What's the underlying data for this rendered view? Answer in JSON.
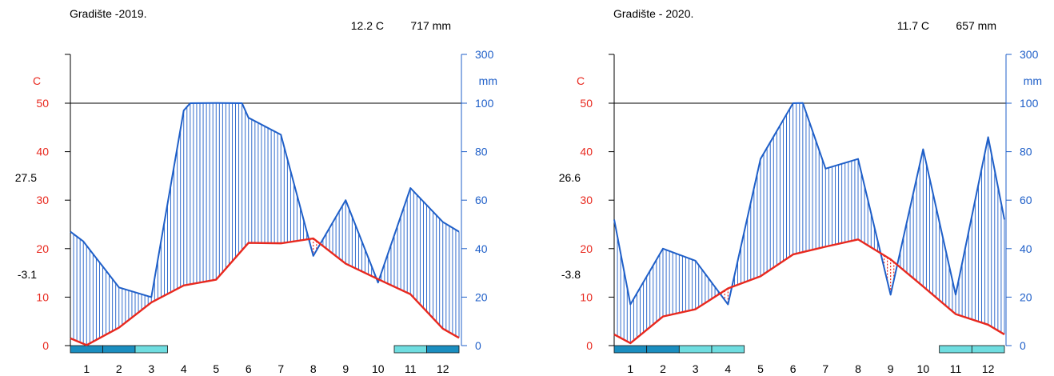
{
  "colors": {
    "temp": "#e8281e",
    "precip": "#1f5fc8",
    "axis": "#000000",
    "frost_sure": "#1a8ec0",
    "frost_probable": "#6fdde0"
  },
  "chart_data": [
    {
      "type": "line",
      "chart_kind": "walter-lieth climate diagram",
      "title": "Gradište -2019.",
      "mean_temp_label": "12.2 C",
      "annual_precip_label": "717 mm",
      "temp_unit": "C",
      "precip_unit": "mm",
      "max_label": "27.5",
      "min_label": "-3.1",
      "x": [
        1,
        2,
        3,
        4,
        5,
        6,
        7,
        8,
        9,
        10,
        11,
        12
      ],
      "xlim": [
        0.5,
        12.5
      ],
      "ylim_temp": [
        0,
        60
      ],
      "ylim_precip": [
        0,
        300
      ],
      "temp_ticks": [
        "0",
        "10",
        "20",
        "30",
        "40",
        "50"
      ],
      "precip_ticks": [
        "0",
        "20",
        "40",
        "60",
        "80",
        "100",
        "300"
      ],
      "month_labels": [
        "1",
        "2",
        "3",
        "4",
        "5",
        "6",
        "7",
        "8",
        "9",
        "10",
        "11",
        "12"
      ],
      "series": [
        {
          "key": "temperature",
          "x": [
            0.5,
            1.0,
            2.0,
            3.0,
            4.0,
            5.0,
            6.0,
            7.0,
            8.0,
            9.0,
            10.0,
            11.0,
            12.0,
            12.5
          ],
          "values": [
            1.5,
            0.1,
            3.7,
            8.9,
            12.4,
            13.6,
            21.2,
            21.1,
            22.1,
            16.9,
            13.7,
            10.6,
            3.5,
            1.6
          ]
        },
        {
          "key": "precipitation",
          "x": [
            0.5,
            0.9,
            2.0,
            3.0,
            4.0,
            4.2,
            5.0,
            5.8,
            6.0,
            7.0,
            8.0,
            9.0,
            10.0,
            11.0,
            12.0,
            12.5
          ],
          "values": [
            47,
            43,
            24,
            20,
            97,
            100,
            101,
            100,
            94,
            87,
            37,
            60,
            26,
            65,
            51,
            47
          ]
        }
      ],
      "frost_months": [
        {
          "month": 1,
          "type": "sure"
        },
        {
          "month": 2,
          "type": "sure"
        },
        {
          "month": 3,
          "type": "probable"
        },
        {
          "month": 11,
          "type": "probable"
        },
        {
          "month": 12,
          "type": "sure"
        }
      ]
    },
    {
      "type": "line",
      "chart_kind": "walter-lieth climate diagram",
      "title": "Gradište - 2020.",
      "mean_temp_label": "11.7 C",
      "annual_precip_label": "657 mm",
      "temp_unit": "C",
      "precip_unit": "mm",
      "max_label": "26.6",
      "min_label": "-3.8",
      "x": [
        1,
        2,
        3,
        4,
        5,
        6,
        7,
        8,
        9,
        10,
        11,
        12
      ],
      "xlim": [
        0.5,
        12.5
      ],
      "ylim_temp": [
        0,
        60
      ],
      "ylim_precip": [
        0,
        300
      ],
      "temp_ticks": [
        "0",
        "10",
        "20",
        "30",
        "40",
        "50"
      ],
      "precip_ticks": [
        "0",
        "20",
        "40",
        "60",
        "80",
        "100",
        "300"
      ],
      "month_labels": [
        "1",
        "2",
        "3",
        "4",
        "5",
        "6",
        "7",
        "8",
        "9",
        "10",
        "11",
        "12"
      ],
      "series": [
        {
          "key": "temperature",
          "x": [
            0.5,
            1.0,
            2.0,
            3.0,
            4.0,
            5.0,
            6.0,
            7.0,
            8.0,
            9.0,
            10.0,
            11.0,
            12.0,
            12.5
          ],
          "values": [
            2.3,
            0.5,
            6.0,
            7.5,
            11.8,
            14.3,
            18.8,
            20.4,
            21.9,
            17.8,
            12.2,
            6.5,
            4.3,
            2.3
          ]
        },
        {
          "key": "precipitation",
          "x": [
            0.5,
            1.0,
            2.0,
            3.0,
            4.0,
            5.0,
            6.0,
            6.3,
            7.0,
            8.0,
            9.0,
            10.0,
            11.0,
            12.0,
            12.5
          ],
          "values": [
            52,
            17,
            40,
            35,
            17,
            77,
            100,
            101,
            73,
            77,
            21,
            81,
            21,
            86,
            52
          ]
        }
      ],
      "frost_months": [
        {
          "month": 1,
          "type": "sure"
        },
        {
          "month": 2,
          "type": "sure"
        },
        {
          "month": 3,
          "type": "probable"
        },
        {
          "month": 4,
          "type": "probable"
        },
        {
          "month": 11,
          "type": "probable"
        },
        {
          "month": 12,
          "type": "probable"
        }
      ]
    }
  ]
}
